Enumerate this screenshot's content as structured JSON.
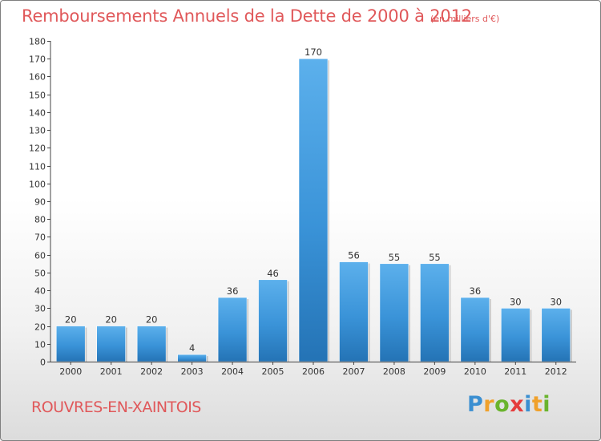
{
  "chart_data": {
    "type": "bar",
    "title": "Remboursements Annuels de la Dette de 2000 à 2012",
    "subtitle": "(en milliers d'€)",
    "categories": [
      "2000",
      "2001",
      "2002",
      "2003",
      "2004",
      "2005",
      "2006",
      "2007",
      "2008",
      "2009",
      "2010",
      "2011",
      "2012"
    ],
    "values": [
      20,
      20,
      20,
      4,
      36,
      46,
      170,
      56,
      55,
      55,
      36,
      30,
      30
    ],
    "data_labels": [
      "20",
      "20",
      "20",
      "4",
      "36",
      "46",
      "170",
      "56",
      "55",
      "55",
      "36",
      "30",
      "30"
    ],
    "xlabel": "",
    "ylabel": "",
    "ylim": [
      0,
      180
    ],
    "yticks": [
      0,
      10,
      20,
      30,
      40,
      50,
      60,
      70,
      80,
      90,
      100,
      110,
      120,
      130,
      140,
      150,
      160,
      170,
      180
    ],
    "grid": false,
    "bar_color": "#3a93d8",
    "bar_color_light": "#5aaeea",
    "bar_color_dark": "#2775b8"
  },
  "footer": {
    "commune": "ROUVRES-EN-XAINTOIS",
    "logo_letters": [
      {
        "ch": "P",
        "color": "#3b8fd1"
      },
      {
        "ch": "r",
        "color": "#f0a12b"
      },
      {
        "ch": "o",
        "color": "#6ab42d"
      },
      {
        "ch": "x",
        "color": "#e53c3c"
      },
      {
        "ch": "i",
        "color": "#3b8fd1"
      },
      {
        "ch": "t",
        "color": "#f0a12b"
      },
      {
        "ch": "i",
        "color": "#6ab42d"
      }
    ]
  },
  "colors": {
    "title": "#e0585a",
    "axis": "#333333"
  }
}
